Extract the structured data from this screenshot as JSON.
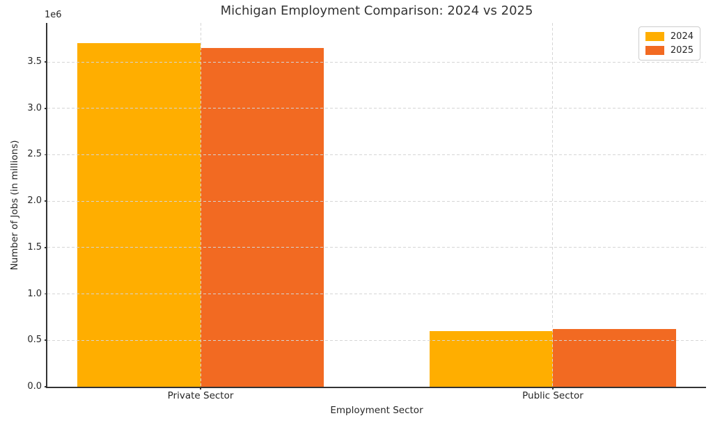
{
  "chart_data": {
    "type": "bar",
    "title": "Michigan Employment Comparison: 2024 vs 2025",
    "xlabel": "Employment Sector",
    "ylabel": "Number of Jobs (in millions)",
    "y_offset_label": "1e6",
    "categories": [
      "Private Sector",
      "Public Sector"
    ],
    "series": [
      {
        "name": "2024",
        "color": "#FFAE00",
        "values": [
          3700000,
          600000
        ]
      },
      {
        "name": "2025",
        "color": "#F26A22",
        "values": [
          3650000,
          620000
        ]
      }
    ],
    "ylim": [
      0,
      3920000
    ],
    "xlim": [
      -0.435,
      1.435
    ],
    "yticks": [
      "0.0",
      "0.5",
      "1.0",
      "1.5",
      "2.0",
      "2.5",
      "3.0",
      "3.5"
    ],
    "ytick_scale": 1000000,
    "bar_width": 0.35,
    "grid": {
      "style": "dashed",
      "color": "#d5d5d5",
      "horizontal": true,
      "vertical": true
    },
    "legend": {
      "position": "upper right",
      "entries": [
        "2024",
        "2025"
      ]
    },
    "axis_color": "#333333",
    "text_color": "#262626"
  }
}
